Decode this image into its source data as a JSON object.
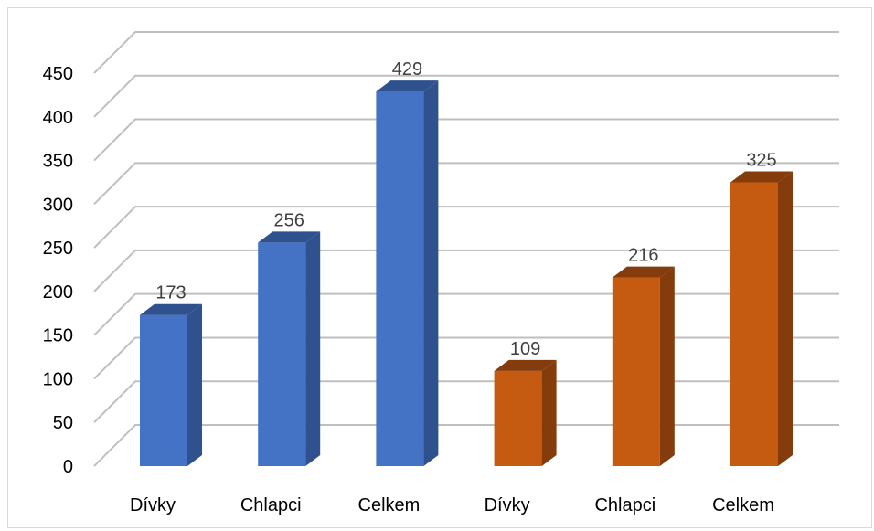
{
  "chart_data": {
    "type": "bar",
    "categories": [
      "Dívky",
      "Chlapci",
      "Celkem",
      "Dívky",
      "Chlapci",
      "Celkem"
    ],
    "values": [
      173,
      256,
      429,
      109,
      216,
      325
    ],
    "value_labels": [
      "173",
      "256",
      "429",
      "109",
      "216",
      "325"
    ],
    "bar_colors": [
      "#4472c4",
      "#4472c4",
      "#4472c4",
      "#c55a11",
      "#c55a11",
      "#c55a11"
    ],
    "bar_side_colors": [
      "#2f528f",
      "#2f528f",
      "#2f528f",
      "#843c0c",
      "#843c0c",
      "#843c0c"
    ],
    "y_ticks": [
      "0",
      "50",
      "100",
      "150",
      "200",
      "250",
      "300",
      "350",
      "400",
      "450"
    ],
    "ylim": [
      0,
      450
    ],
    "grid": true,
    "style": "3d-column",
    "title": "",
    "xlabel": "",
    "ylabel": ""
  }
}
